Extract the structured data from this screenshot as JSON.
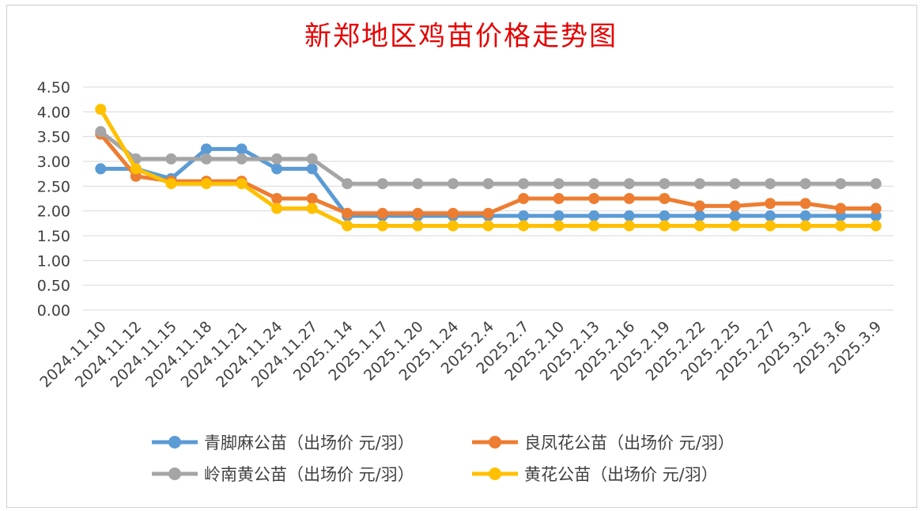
{
  "chart_data": {
    "type": "line",
    "title": "新郑地区鸡苗价格走势图",
    "categories": [
      "2024.11.10",
      "2024.11.12",
      "2024.11.15",
      "2024.11.18",
      "2024.11.21",
      "2024.11.24",
      "2024.11.27",
      "2025.1.14",
      "2025.1.17",
      "2025.1.20",
      "2025.1.24",
      "2025.2.4",
      "2025.2.7",
      "2025.2.10",
      "2025.2.13",
      "2025.2.16",
      "2025.2.19",
      "2025.2.22",
      "2025.2.25",
      "2025.2.27",
      "2025.3.2",
      "2025.3.6",
      "2025.3.9"
    ],
    "y_ticks": [
      "0.00",
      "0.50",
      "1.00",
      "1.50",
      "2.00",
      "2.50",
      "3.00",
      "3.50",
      "4.00",
      "4.50"
    ],
    "ylim": [
      0,
      4.5
    ],
    "grid": "horizontal",
    "legend_position": "bottom",
    "series": [
      {
        "name": "青脚麻公苗（出场价 元/羽）",
        "color": "#5b9bd5",
        "values": [
          2.85,
          2.85,
          2.65,
          3.25,
          3.25,
          2.85,
          2.85,
          1.9,
          1.9,
          1.9,
          1.9,
          1.9,
          1.9,
          1.9,
          1.9,
          1.9,
          1.9,
          1.9,
          1.9,
          1.9,
          1.9,
          1.9,
          1.9
        ]
      },
      {
        "name": "良凤花公苗（出场价 元/羽）",
        "color": "#ed7d31",
        "values": [
          3.55,
          2.7,
          2.6,
          2.6,
          2.6,
          2.25,
          2.25,
          1.95,
          1.95,
          1.95,
          1.95,
          1.95,
          2.25,
          2.25,
          2.25,
          2.25,
          2.25,
          2.1,
          2.1,
          2.15,
          2.15,
          2.05,
          2.05
        ]
      },
      {
        "name": "岭南黄公苗（出场价 元/羽）",
        "color": "#a5a5a5",
        "values": [
          3.6,
          3.05,
          3.05,
          3.05,
          3.05,
          3.05,
          3.05,
          2.55,
          2.55,
          2.55,
          2.55,
          2.55,
          2.55,
          2.55,
          2.55,
          2.55,
          2.55,
          2.55,
          2.55,
          2.55,
          2.55,
          2.55,
          2.55
        ]
      },
      {
        "name": "黄花公苗（出场价 元/羽）",
        "color": "#ffc000",
        "values": [
          4.05,
          2.85,
          2.55,
          2.55,
          2.55,
          2.05,
          2.05,
          1.7,
          1.7,
          1.7,
          1.7,
          1.7,
          1.7,
          1.7,
          1.7,
          1.7,
          1.7,
          1.7,
          1.7,
          1.7,
          1.7,
          1.7,
          1.7
        ]
      }
    ]
  }
}
